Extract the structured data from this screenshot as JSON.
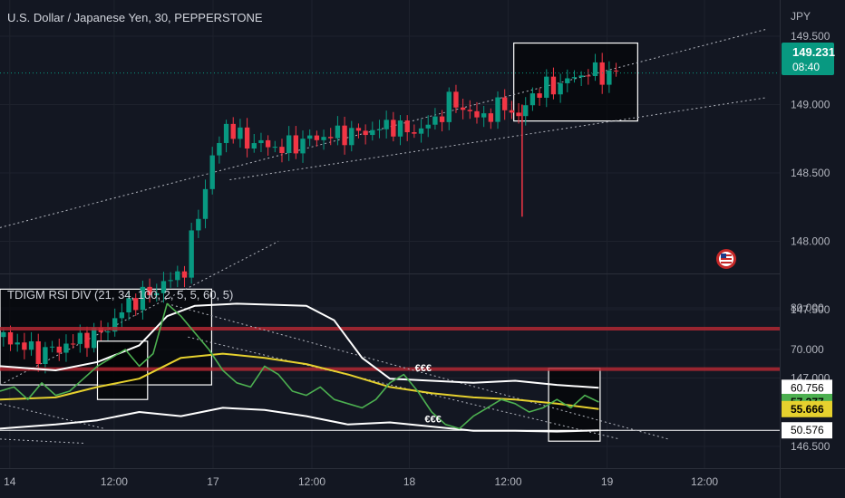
{
  "chart_data": [
    {
      "type": "candlestick",
      "title": "U.S. Dollar / Japanese Yen, 30, PEPPERSTONE",
      "currency": "JPY",
      "y_ticks": [
        "149.500",
        "149.000",
        "148.500",
        "148.000",
        "147.500",
        "147.000",
        "146.500"
      ],
      "ylim": [
        146.25,
        149.6
      ],
      "price_label": {
        "value": "149.231",
        "countdown": "08:40",
        "color": "#089981"
      },
      "up_color": "#089981",
      "down_color": "#f23645",
      "price_path": [
        [
          0,
          147.3
        ],
        [
          2.5,
          147.18
        ],
        [
          4,
          147.22
        ],
        [
          6,
          147.3
        ],
        [
          7,
          147.33
        ],
        [
          8,
          147.42
        ],
        [
          9,
          147.55
        ],
        [
          10.5,
          147.62
        ],
        [
          11,
          147.65
        ],
        [
          12,
          147.72
        ],
        [
          13,
          147.8
        ],
        [
          14,
          148.2
        ],
        [
          15,
          148.6
        ],
        [
          16,
          148.85
        ],
        [
          17,
          148.75
        ],
        [
          18,
          148.72
        ],
        [
          20,
          148.68
        ],
        [
          22,
          148.75
        ],
        [
          24,
          148.78
        ],
        [
          26,
          148.8
        ],
        [
          28,
          148.85
        ],
        [
          29,
          148.8
        ],
        [
          30,
          148.82
        ],
        [
          31,
          148.88
        ],
        [
          32,
          149.02
        ],
        [
          33,
          148.98
        ],
        [
          34,
          148.9
        ],
        [
          35,
          148.94
        ],
        [
          36,
          149.0
        ],
        [
          37,
          148.9
        ],
        [
          38,
          149.08
        ],
        [
          39,
          149.12
        ],
        [
          40,
          149.15
        ],
        [
          41,
          149.2
        ],
        [
          42,
          149.24
        ],
        [
          43,
          149.22
        ],
        [
          44,
          149.23
        ]
      ],
      "wick_spike": {
        "x": 37.5,
        "low": 148.18
      },
      "trend_channels": [
        {
          "name": "channel-upper",
          "from": [
            0,
            148.1
          ],
          "to": [
            55,
            149.55
          ]
        },
        {
          "name": "channel-lower",
          "from": [
            16.5,
            148.45
          ],
          "to": [
            55,
            149.05
          ]
        },
        {
          "name": "early-channel-lower",
          "from": [
            0,
            146.95
          ],
          "to": [
            20,
            148.0
          ]
        }
      ],
      "boxes": [
        {
          "name": "consolidation-box-left",
          "x": [
            0,
            15.2
          ],
          "y": [
            146.95,
            147.65
          ]
        },
        {
          "name": "consolidation-box-right",
          "x": [
            36.9,
            45.8
          ],
          "y": [
            148.88,
            149.45
          ]
        }
      ],
      "flag_icon": "us-flag-icon"
    },
    {
      "type": "line",
      "title": "TDIGM RSI DIV (21, 34, 100, 2, 5, 5, 60, 5)",
      "y_ticks": [
        "80.000",
        "70.000"
      ],
      "ylim": [
        48,
        84
      ],
      "series": [
        {
          "color": "#4caf50",
          "values": [
            [
              0,
              60
            ],
            [
              1,
              61
            ],
            [
              2,
              58
            ],
            [
              3,
              62
            ],
            [
              4,
              59
            ],
            [
              5,
              60
            ],
            [
              6,
              63
            ],
            [
              7,
              66
            ],
            [
              8,
              68
            ],
            [
              9,
              70
            ],
            [
              10,
              66
            ],
            [
              11,
              69
            ],
            [
              12,
              81
            ],
            [
              13,
              78
            ],
            [
              14,
              74
            ],
            [
              15,
              70
            ],
            [
              16,
              65
            ],
            [
              17,
              62
            ],
            [
              18,
              61
            ],
            [
              19,
              66
            ],
            [
              20,
              64
            ],
            [
              21,
              60
            ],
            [
              22,
              59
            ],
            [
              23,
              61
            ],
            [
              24,
              58
            ],
            [
              25,
              57
            ],
            [
              26,
              56
            ],
            [
              27,
              58
            ],
            [
              28,
              62
            ],
            [
              29,
              64
            ],
            [
              30,
              60
            ],
            [
              31,
              55
            ],
            [
              32,
              52
            ],
            [
              33,
              51
            ],
            [
              34,
              54
            ],
            [
              35,
              56
            ],
            [
              36,
              58
            ],
            [
              37,
              57
            ],
            [
              38,
              55
            ],
            [
              39,
              56
            ],
            [
              40,
              58
            ],
            [
              41,
              56
            ],
            [
              42,
              59
            ],
            [
              43,
              57.4
            ]
          ],
          "current": "57.377"
        },
        {
          "color": "#e6d12e",
          "values": [
            [
              0,
              58
            ],
            [
              4,
              58.5
            ],
            [
              7,
              61
            ],
            [
              10,
              63
            ],
            [
              13,
              68
            ],
            [
              16,
              69
            ],
            [
              19,
              68
            ],
            [
              22,
              66.5
            ],
            [
              25,
              64
            ],
            [
              28,
              61
            ],
            [
              31,
              59.5
            ],
            [
              34,
              58.5
            ],
            [
              37,
              58
            ],
            [
              40,
              57
            ],
            [
              43,
              55.7
            ]
          ],
          "current": "55.666"
        },
        {
          "color": "#ffffff",
          "values": [
            [
              0,
              66
            ],
            [
              4,
              65
            ],
            [
              7,
              67
            ],
            [
              10,
              71
            ],
            [
              12,
              78
            ],
            [
              14,
              80.5
            ],
            [
              17,
              81
            ],
            [
              22,
              80.5
            ],
            [
              24,
              77
            ],
            [
              26,
              68
            ],
            [
              28,
              63
            ],
            [
              31,
              62.5
            ],
            [
              34,
              62
            ],
            [
              37,
              62.5
            ],
            [
              40,
              61.5
            ],
            [
              43,
              60.8
            ]
          ],
          "current": "60.756"
        },
        {
          "color": "#ffffff",
          "values": [
            [
              0,
              51
            ],
            [
              4,
              52
            ],
            [
              7,
              53
            ],
            [
              10,
              55
            ],
            [
              13,
              54
            ],
            [
              16,
              56
            ],
            [
              19,
              55.5
            ],
            [
              22,
              54
            ],
            [
              25,
              52
            ],
            [
              28,
              52.5
            ],
            [
              31,
              51.5
            ],
            [
              34,
              50.5
            ],
            [
              37,
              50.5
            ],
            [
              40,
              50.3
            ],
            [
              43,
              50.6
            ]
          ],
          "current": "50.576"
        }
      ],
      "levels": [
        {
          "value": 75,
          "color": "#b22833"
        },
        {
          "value": 65.3,
          "color": "#b22833"
        },
        {
          "value": 50.6,
          "color": "#ffffff"
        }
      ],
      "signal_labels": [
        {
          "text": "€€€",
          "x": 29.8,
          "y": 64.8
        },
        {
          "text": "€€€",
          "x": 30.5,
          "y": 52.5
        }
      ],
      "boxes": [
        {
          "name": "rsi-box-left",
          "x": [
            7,
            10.6
          ],
          "y": [
            58,
            72
          ]
        },
        {
          "name": "rsi-box-right",
          "x": [
            39.4,
            43.1
          ],
          "y": [
            48,
            65.5
          ]
        }
      ]
    }
  ],
  "x_axis": {
    "labels": [
      {
        "text": "14",
        "x": 0.7
      },
      {
        "text": "12:00",
        "x": 8.2
      },
      {
        "text": "17",
        "x": 15.3
      },
      {
        "text": "12:00",
        "x": 22.4
      },
      {
        "text": "18",
        "x": 29.4
      },
      {
        "text": "12:00",
        "x": 36.5
      },
      {
        "text": "19",
        "x": 43.6
      },
      {
        "text": "12:00",
        "x": 50.6
      }
    ],
    "range": [
      0,
      56
    ]
  }
}
